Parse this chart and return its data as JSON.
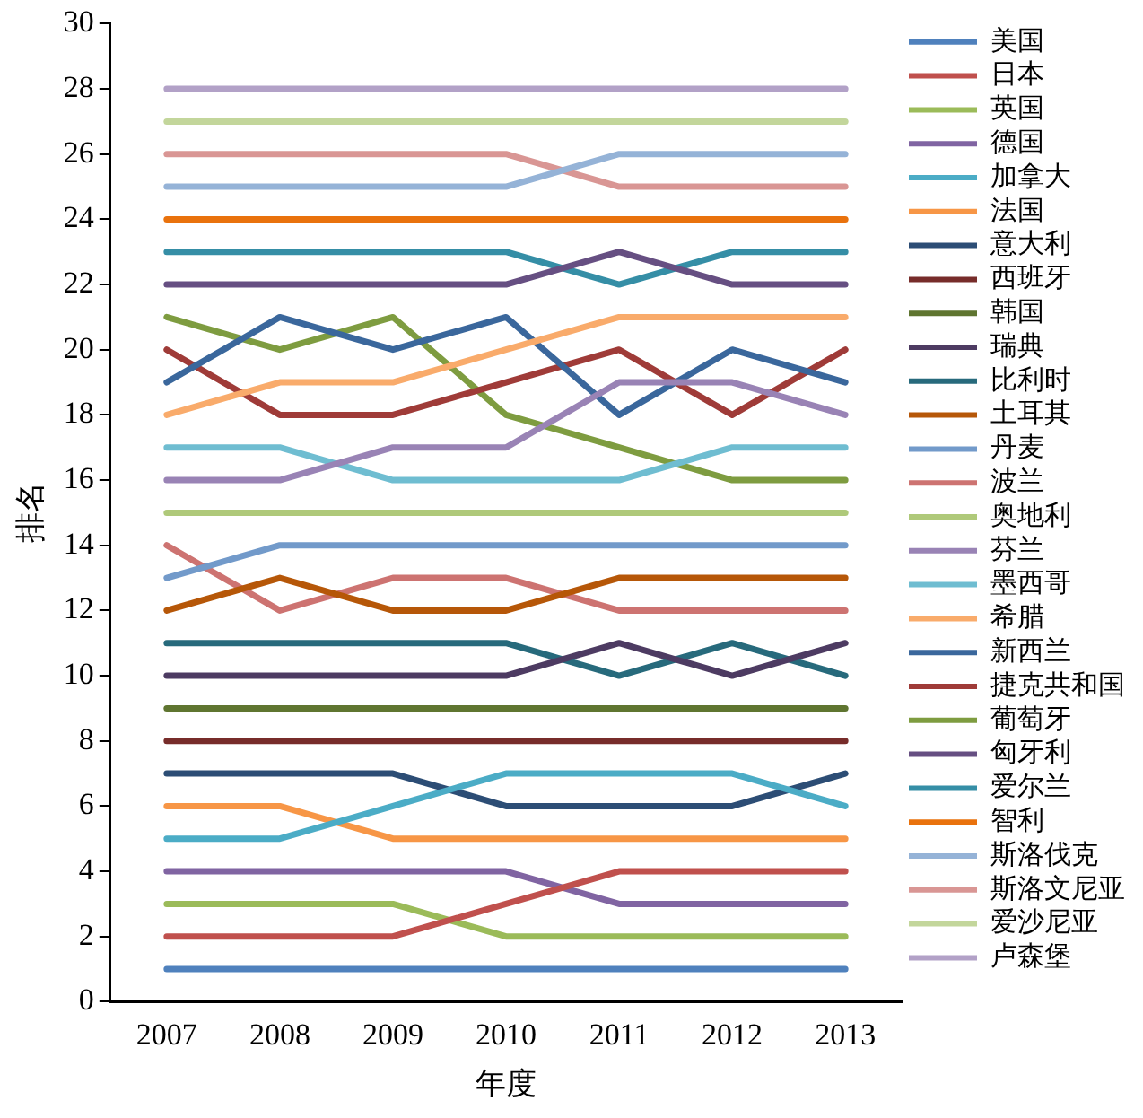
{
  "chart_data": {
    "type": "line",
    "xlabel": "年度",
    "ylabel": "排名",
    "categories": [
      "2007",
      "2008",
      "2009",
      "2010",
      "2011",
      "2012",
      "2013"
    ],
    "ylim": [
      0,
      30
    ],
    "yticks": [
      0,
      2,
      4,
      6,
      8,
      10,
      12,
      14,
      16,
      18,
      20,
      22,
      24,
      26,
      28,
      30
    ],
    "grid": false,
    "legend": "right",
    "marker": "none",
    "line_style": "solid",
    "series": [
      {
        "name": "美国",
        "color": "#4f81bd",
        "values": [
          1,
          1,
          1,
          1,
          1,
          1,
          1
        ]
      },
      {
        "name": "日本",
        "color": "#c0504d",
        "values": [
          2,
          2,
          2,
          3,
          4,
          4,
          4
        ]
      },
      {
        "name": "英国",
        "color": "#9bbb59",
        "values": [
          3,
          3,
          3,
          2,
          2,
          2,
          2
        ]
      },
      {
        "name": "德国",
        "color": "#8064a2",
        "values": [
          4,
          4,
          4,
          4,
          3,
          3,
          3
        ]
      },
      {
        "name": "加拿大",
        "color": "#4bacc6",
        "values": [
          5,
          5,
          6,
          7,
          7,
          7,
          6
        ]
      },
      {
        "name": "法国",
        "color": "#f79646",
        "values": [
          6,
          6,
          5,
          5,
          5,
          5,
          5
        ]
      },
      {
        "name": "意大利",
        "color": "#2c4d75",
        "values": [
          7,
          7,
          7,
          6,
          6,
          6,
          7
        ]
      },
      {
        "name": "西班牙",
        "color": "#772c2a",
        "values": [
          8,
          8,
          8,
          8,
          8,
          8,
          8
        ]
      },
      {
        "name": "韩国",
        "color": "#5f7530",
        "values": [
          9,
          9,
          9,
          9,
          9,
          9,
          9
        ]
      },
      {
        "name": "瑞典",
        "color": "#4d3b62",
        "values": [
          10,
          10,
          10,
          10,
          11,
          10,
          11
        ]
      },
      {
        "name": "比利时",
        "color": "#276a7c",
        "values": [
          11,
          11,
          11,
          11,
          10,
          11,
          10
        ]
      },
      {
        "name": "土耳其",
        "color": "#b65708",
        "values": [
          12,
          13,
          12,
          12,
          13,
          13,
          13
        ]
      },
      {
        "name": "丹麦",
        "color": "#729aca",
        "values": [
          13,
          14,
          14,
          14,
          14,
          14,
          14
        ]
      },
      {
        "name": "波兰",
        "color": "#cd7371",
        "values": [
          14,
          12,
          13,
          13,
          12,
          12,
          12
        ]
      },
      {
        "name": "奥地利",
        "color": "#afc97a",
        "values": [
          15,
          15,
          15,
          15,
          15,
          15,
          15
        ]
      },
      {
        "name": "芬兰",
        "color": "#9983b5",
        "values": [
          16,
          16,
          17,
          17,
          19,
          19,
          18
        ]
      },
      {
        "name": "墨西哥",
        "color": "#6fbdd1",
        "values": [
          17,
          17,
          16,
          16,
          16,
          17,
          17
        ]
      },
      {
        "name": "希腊",
        "color": "#f9ab6b",
        "values": [
          18,
          19,
          19,
          20,
          21,
          21,
          21
        ]
      },
      {
        "name": "新西兰",
        "color": "#3a679c",
        "values": [
          19,
          21,
          20,
          21,
          18,
          20,
          19
        ]
      },
      {
        "name": "捷克共和国",
        "color": "#9f3b38",
        "values": [
          20,
          18,
          18,
          19,
          20,
          18,
          20
        ]
      },
      {
        "name": "葡萄牙",
        "color": "#7e9c40",
        "values": [
          21,
          20,
          21,
          18,
          17,
          16,
          16
        ]
      },
      {
        "name": "匈牙利",
        "color": "#664f82",
        "values": [
          22,
          22,
          22,
          22,
          23,
          22,
          22
        ]
      },
      {
        "name": "爱尔兰",
        "color": "#358ea6",
        "values": [
          23,
          23,
          23,
          23,
          22,
          23,
          23
        ]
      },
      {
        "name": "智利",
        "color": "#e9720d",
        "values": [
          24,
          24,
          24,
          24,
          24,
          24,
          24
        ]
      },
      {
        "name": "斯洛伐克",
        "color": "#95b3d7",
        "values": [
          25,
          25,
          25,
          25,
          26,
          26,
          26
        ]
      },
      {
        "name": "斯洛文尼亚",
        "color": "#d99694",
        "values": [
          26,
          26,
          26,
          26,
          25,
          25,
          25
        ]
      },
      {
        "name": "爱沙尼亚",
        "color": "#c3d69b",
        "values": [
          27,
          27,
          27,
          27,
          27,
          27,
          27
        ]
      },
      {
        "name": "卢森堡",
        "color": "#b2a1c7",
        "values": [
          28,
          28,
          28,
          28,
          28,
          28,
          28
        ]
      }
    ]
  }
}
